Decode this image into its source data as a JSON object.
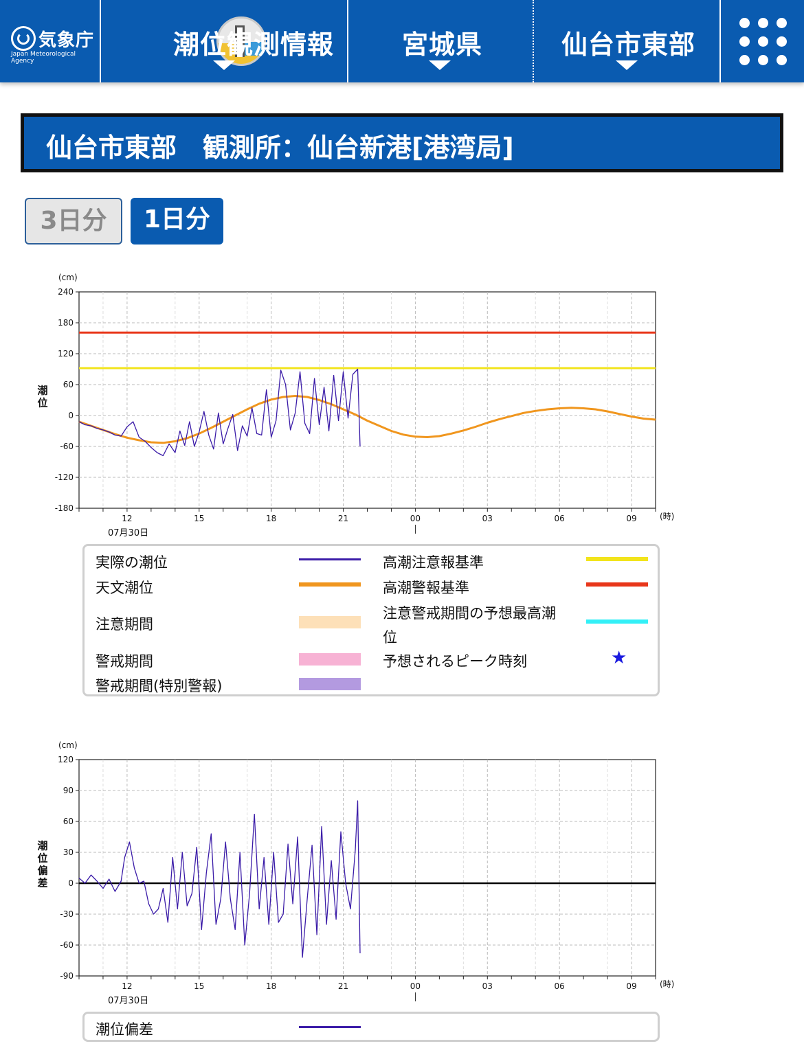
{
  "header": {
    "logo_text": "気象庁",
    "logo_en": "Japan Meteorological Agency",
    "app_title": "潮位観測情報",
    "prefecture": "宮城県",
    "area": "仙台市東部"
  },
  "station_title": "仙台市東部　観測所：仙台新港[港湾局]",
  "buttons": {
    "three_day": "3日分",
    "one_day": "1日分"
  },
  "colors": {
    "header_bg": "#0a5bb0",
    "observed": "#3b1ca8",
    "astronomical": "#f0961e",
    "advisory_line": "#f2e41c",
    "warning_line": "#e8361a",
    "advisory_period": "#fde0b8",
    "warning_period": "#f7b2d4",
    "special_warning_period": "#b39ae0",
    "forecast_max": "#33f0f7",
    "peak_star": "#1a1adf"
  },
  "legend1": {
    "observed": "実際の潮位",
    "astronomical": "天文潮位",
    "advisory_period": "注意期間",
    "warning_period": "警戒期間",
    "special_warning_period": "警戒期間(特別警報)",
    "advisory_line": "高潮注意報基準",
    "warning_line": "高潮警報基準",
    "forecast_max_1": "注意警戒期間の予想最高潮",
    "forecast_max_2": "位",
    "peak_time": "予想されるピーク時刻",
    "star_glyph": "★"
  },
  "legend2": {
    "deviation": "潮位偏差"
  },
  "chart_data": [
    {
      "type": "line",
      "unit": "(cm)",
      "ylabel": "潮位",
      "xunit": "(時)",
      "date_label": "07月30日",
      "x_range_hours": [
        10,
        34
      ],
      "ylim": [
        -180,
        240
      ],
      "y_ticks": [
        240,
        180,
        120,
        60,
        0,
        -60,
        -120,
        -180
      ],
      "x_ticks": [
        {
          "h": 12,
          "label": "12"
        },
        {
          "h": 15,
          "label": "15"
        },
        {
          "h": 18,
          "label": "18"
        },
        {
          "h": 21,
          "label": "21"
        },
        {
          "h": 24,
          "label": "00"
        },
        {
          "h": 27,
          "label": "03"
        },
        {
          "h": 30,
          "label": "06"
        },
        {
          "h": 33,
          "label": "09"
        }
      ],
      "grid": true,
      "advisory_level": 92,
      "warning_level": 161,
      "series": [
        {
          "name": "天文潮位",
          "x": [
            10.0,
            10.5,
            11.0,
            11.5,
            12.0,
            12.5,
            13.0,
            13.5,
            14.0,
            14.5,
            15.0,
            15.5,
            16.0,
            16.5,
            17.0,
            17.5,
            18.0,
            18.5,
            19.0,
            19.5,
            20.0,
            20.5,
            21.0,
            21.5,
            22.0,
            22.5,
            23.0,
            23.5,
            24.0,
            24.5,
            25.0,
            25.5,
            26.0,
            26.5,
            27.0,
            27.5,
            28.0,
            28.5,
            29.0,
            29.5,
            30.0,
            30.5,
            31.0,
            31.5,
            32.0,
            32.5,
            33.0,
            33.5,
            34.0
          ],
          "values": [
            -12,
            -20,
            -28,
            -36,
            -43,
            -48,
            -52,
            -53,
            -50,
            -44,
            -35,
            -24,
            -12,
            0,
            12,
            23,
            31,
            36,
            38,
            36,
            30,
            22,
            12,
            2,
            -10,
            -20,
            -30,
            -37,
            -41,
            -42,
            -40,
            -35,
            -29,
            -22,
            -14,
            -7,
            -1,
            5,
            9,
            12,
            14,
            15,
            14,
            12,
            8,
            3,
            -2,
            -6,
            -8
          ]
        },
        {
          "name": "実際の潮位",
          "x": [
            10.0,
            10.25,
            10.5,
            10.75,
            11.0,
            11.25,
            11.5,
            11.75,
            12.0,
            12.25,
            12.5,
            12.75,
            13.0,
            13.25,
            13.5,
            13.75,
            14.0,
            14.2,
            14.4,
            14.6,
            14.8,
            15.0,
            15.2,
            15.4,
            15.6,
            15.8,
            16.0,
            16.2,
            16.4,
            16.6,
            16.8,
            17.0,
            17.2,
            17.4,
            17.6,
            17.8,
            18.0,
            18.2,
            18.4,
            18.6,
            18.8,
            19.0,
            19.2,
            19.4,
            19.6,
            19.8,
            20.0,
            20.2,
            20.4,
            20.6,
            20.8,
            21.0,
            21.2,
            21.4,
            21.6,
            21.7
          ],
          "values": [
            -12,
            -18,
            -20,
            -25,
            -28,
            -32,
            -38,
            -40,
            -22,
            -12,
            -42,
            -50,
            -62,
            -72,
            -78,
            -55,
            -72,
            -30,
            -58,
            -12,
            -60,
            -32,
            8,
            -38,
            -65,
            5,
            -55,
            -25,
            2,
            -68,
            -20,
            -40,
            15,
            -35,
            -38,
            50,
            -42,
            -10,
            88,
            60,
            -28,
            5,
            85,
            -15,
            -35,
            72,
            -18,
            55,
            -30,
            78,
            -10,
            85,
            -5,
            80,
            90,
            -60
          ]
        }
      ]
    },
    {
      "type": "line",
      "unit": "(cm)",
      "ylabel": "潮位偏差",
      "xunit": "(時)",
      "date_label": "07月30日",
      "x_range_hours": [
        10,
        34
      ],
      "ylim": [
        -90,
        120
      ],
      "y_ticks": [
        120,
        90,
        60,
        30,
        0,
        -30,
        -60,
        -90
      ],
      "x_ticks": [
        {
          "h": 12,
          "label": "12"
        },
        {
          "h": 15,
          "label": "15"
        },
        {
          "h": 18,
          "label": "18"
        },
        {
          "h": 21,
          "label": "21"
        },
        {
          "h": 24,
          "label": "00"
        },
        {
          "h": 27,
          "label": "03"
        },
        {
          "h": 30,
          "label": "06"
        },
        {
          "h": 33,
          "label": "09"
        }
      ],
      "grid": true,
      "baseline": 0,
      "series": [
        {
          "name": "潮位偏差",
          "x": [
            10.0,
            10.25,
            10.5,
            10.75,
            11.0,
            11.25,
            11.5,
            11.75,
            11.9,
            12.1,
            12.3,
            12.5,
            12.7,
            12.9,
            13.1,
            13.3,
            13.5,
            13.7,
            13.9,
            14.1,
            14.3,
            14.5,
            14.7,
            14.9,
            15.1,
            15.3,
            15.5,
            15.7,
            15.9,
            16.1,
            16.3,
            16.5,
            16.7,
            16.9,
            17.1,
            17.3,
            17.5,
            17.7,
            17.9,
            18.1,
            18.3,
            18.5,
            18.7,
            18.9,
            19.1,
            19.3,
            19.5,
            19.7,
            19.9,
            20.1,
            20.3,
            20.5,
            20.7,
            20.9,
            21.1,
            21.3,
            21.5,
            21.6,
            21.7
          ],
          "values": [
            5,
            0,
            8,
            2,
            -5,
            4,
            -8,
            2,
            25,
            40,
            15,
            0,
            2,
            -20,
            -30,
            -25,
            -5,
            -38,
            25,
            -25,
            30,
            -22,
            -10,
            35,
            -45,
            10,
            48,
            -40,
            -15,
            40,
            -15,
            -45,
            30,
            -60,
            -10,
            67,
            -25,
            25,
            -40,
            30,
            -38,
            -30,
            38,
            -20,
            45,
            -72,
            -15,
            37,
            -50,
            55,
            -40,
            22,
            -35,
            50,
            0,
            -25,
            32,
            80,
            -68
          ]
        }
      ]
    }
  ]
}
